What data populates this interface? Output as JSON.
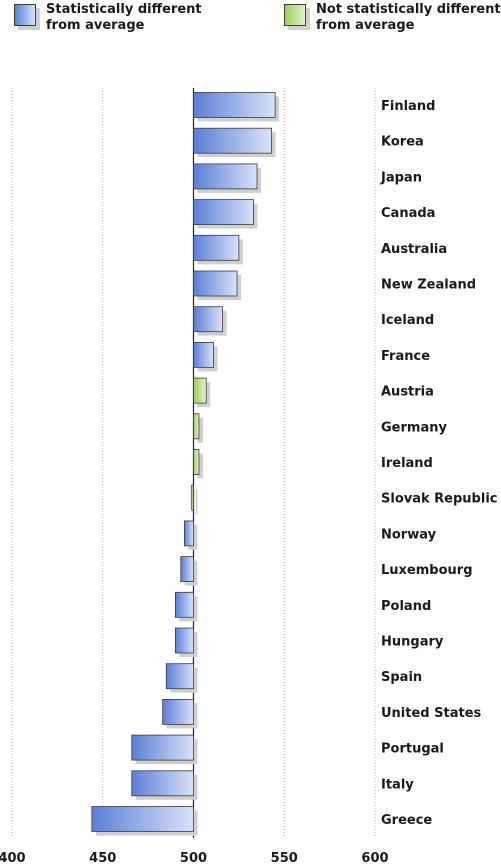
{
  "legend": [
    {
      "label_line1": "Statistically different",
      "label_line2": "from average",
      "color": "#5b7fd6"
    },
    {
      "label_line1": "Not statistically different",
      "label_line2": "from average",
      "color": "#9ccd5a"
    }
  ],
  "chart_data": {
    "type": "bar",
    "orientation": "horizontal",
    "baseline": 500,
    "xlim": [
      400,
      600
    ],
    "xticks": [
      400,
      450,
      500,
      550,
      600
    ],
    "grid": true,
    "colors": {
      "significant": "#5b7fd6",
      "not_significant": "#9ccd5a"
    },
    "categories": [
      "Finland",
      "Korea",
      "Japan",
      "Canada",
      "Australia",
      "New Zealand",
      "Iceland",
      "France",
      "Austria",
      "Germany",
      "Ireland",
      "Slovak Republic",
      "Norway",
      "Luxembourg",
      "Poland",
      "Hungary",
      "Spain",
      "United States",
      "Portugal",
      "Italy",
      "Greece"
    ],
    "values": [
      545,
      543,
      535,
      533,
      525,
      524,
      516,
      511,
      507,
      503,
      503,
      499,
      495,
      493,
      490,
      490,
      485,
      483,
      466,
      466,
      444
    ],
    "significant": [
      true,
      true,
      true,
      true,
      true,
      true,
      true,
      true,
      false,
      false,
      false,
      false,
      true,
      true,
      true,
      true,
      true,
      true,
      true,
      true,
      true
    ]
  }
}
